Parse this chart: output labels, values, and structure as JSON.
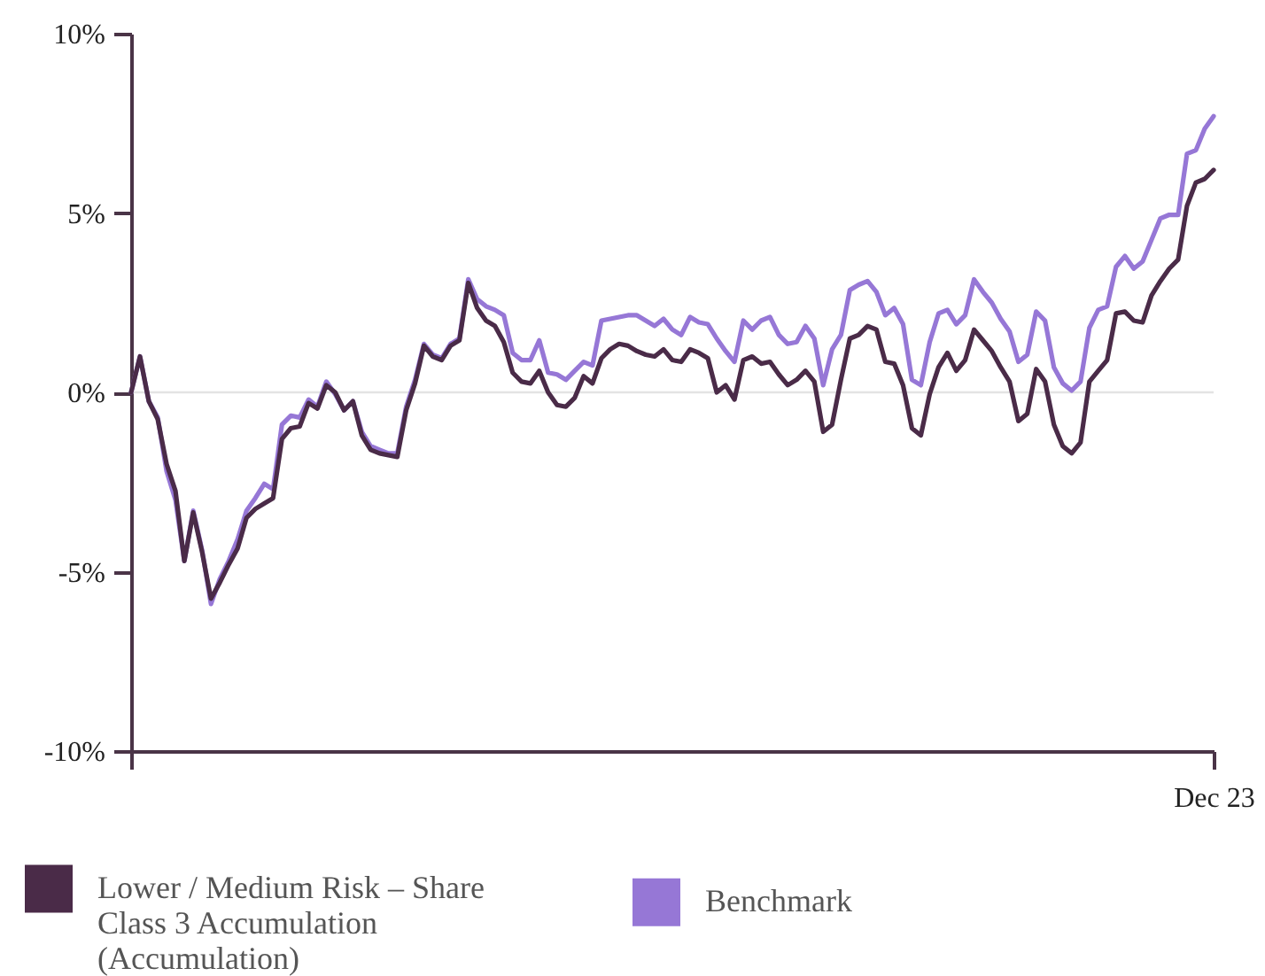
{
  "chart_data": {
    "type": "line",
    "categories": [
      null,
      null,
      null,
      null,
      null,
      null,
      null,
      null,
      null,
      null,
      null,
      null,
      null,
      null,
      null,
      null,
      null,
      null,
      null,
      null,
      null,
      null,
      null,
      null,
      null,
      null,
      null,
      null,
      null,
      null,
      null,
      null,
      null,
      null,
      null,
      null,
      null,
      null,
      null,
      null,
      null,
      null,
      null,
      null,
      null,
      null,
      null,
      null,
      null,
      null,
      null,
      null,
      null,
      null,
      null,
      null,
      null,
      null,
      null,
      null,
      null,
      null,
      null,
      null,
      null,
      null,
      null,
      null,
      null,
      null,
      null,
      null,
      null,
      null,
      null,
      null,
      null,
      null,
      null,
      null,
      null,
      null,
      null,
      null,
      null,
      null,
      null,
      null,
      null,
      null,
      null,
      null,
      null,
      null,
      null,
      null,
      null,
      null,
      null,
      null,
      null,
      null,
      null,
      null,
      null,
      null,
      null,
      null,
      null,
      null,
      null,
      null,
      null,
      null,
      null,
      null,
      null,
      null,
      null,
      null,
      null,
      null,
      "Dec 23"
    ],
    "ylim": [
      -10,
      10
    ],
    "yticks": [
      {
        "value": -10,
        "label": "-10%"
      },
      {
        "value": -5,
        "label": "-5%"
      },
      {
        "value": 0,
        "label": "0%"
      },
      {
        "value": 5,
        "label": "5%"
      },
      {
        "value": 10,
        "label": "10%"
      }
    ],
    "ref_lines": [
      {
        "axis": "y",
        "value": 0,
        "color": "#e3e3e3"
      }
    ],
    "legend": "bottom left",
    "series": [
      {
        "name": "Lower / Medium Risk – Share Class 3 Accumulation (Accumulation)",
        "color": "#4a2b48",
        "values": [
          0.0,
          1.0,
          -0.25,
          -0.75,
          -2.0,
          -2.75,
          -4.7,
          -3.35,
          -4.45,
          -5.75,
          -5.3,
          -4.8,
          -4.35,
          -3.5,
          -3.25,
          -3.1,
          -2.95,
          -1.3,
          -1.0,
          -0.95,
          -0.3,
          -0.45,
          0.2,
          0.0,
          -0.5,
          -0.25,
          -1.2,
          -1.6,
          -1.7,
          -1.75,
          -1.8,
          -0.5,
          0.25,
          1.3,
          1.0,
          0.9,
          1.3,
          1.45,
          3.05,
          2.35,
          2.0,
          1.85,
          1.4,
          0.55,
          0.3,
          0.25,
          0.6,
          0.0,
          -0.35,
          -0.4,
          -0.15,
          0.45,
          0.25,
          0.95,
          1.2,
          1.35,
          1.3,
          1.15,
          1.05,
          1.0,
          1.2,
          0.9,
          0.85,
          1.2,
          1.1,
          0.95,
          0.0,
          0.2,
          -0.2,
          0.9,
          1.0,
          0.8,
          0.85,
          0.5,
          0.2,
          0.35,
          0.6,
          0.3,
          -1.1,
          -0.9,
          0.35,
          1.5,
          1.6,
          1.85,
          1.75,
          0.85,
          0.8,
          0.2,
          -1.0,
          -1.2,
          -0.05,
          0.7,
          1.1,
          0.6,
          0.9,
          1.75,
          1.45,
          1.15,
          0.7,
          0.3,
          -0.8,
          -0.6,
          0.65,
          0.3,
          -0.9,
          -1.5,
          -1.7,
          -1.4,
          0.3,
          0.6,
          0.9,
          2.2,
          2.25,
          2.0,
          1.95,
          2.7,
          3.1,
          3.45,
          3.7,
          5.2,
          5.85,
          5.95,
          6.2
        ]
      },
      {
        "name": "Benchmark",
        "color": "#9677d6",
        "values": [
          0.0,
          1.0,
          -0.25,
          -0.7,
          -2.2,
          -3.0,
          -4.7,
          -3.3,
          -4.4,
          -5.9,
          -5.2,
          -4.7,
          -4.1,
          -3.3,
          -2.95,
          -2.55,
          -2.7,
          -0.9,
          -0.65,
          -0.7,
          -0.2,
          -0.4,
          0.3,
          -0.05,
          -0.5,
          -0.25,
          -1.1,
          -1.5,
          -1.6,
          -1.7,
          -1.7,
          -0.4,
          0.35,
          1.35,
          1.05,
          0.95,
          1.35,
          1.5,
          3.15,
          2.6,
          2.4,
          2.3,
          2.15,
          1.1,
          0.9,
          0.9,
          1.45,
          0.55,
          0.5,
          0.35,
          0.6,
          0.85,
          0.75,
          2.0,
          2.05,
          2.1,
          2.15,
          2.15,
          2.0,
          1.85,
          2.05,
          1.75,
          1.6,
          2.1,
          1.95,
          1.9,
          1.5,
          1.15,
          0.85,
          2.0,
          1.75,
          2.0,
          2.1,
          1.6,
          1.35,
          1.4,
          1.85,
          1.5,
          0.2,
          1.2,
          1.6,
          2.85,
          3.0,
          3.1,
          2.8,
          2.15,
          2.35,
          1.9,
          0.35,
          0.2,
          1.4,
          2.2,
          2.3,
          1.9,
          2.15,
          3.15,
          2.8,
          2.5,
          2.05,
          1.7,
          0.85,
          1.05,
          2.25,
          2.0,
          0.7,
          0.25,
          0.05,
          0.3,
          1.8,
          2.3,
          2.4,
          3.5,
          3.8,
          3.45,
          3.65,
          4.25,
          4.85,
          4.95,
          4.95,
          6.65,
          6.75,
          7.35,
          7.7
        ]
      }
    ]
  }
}
